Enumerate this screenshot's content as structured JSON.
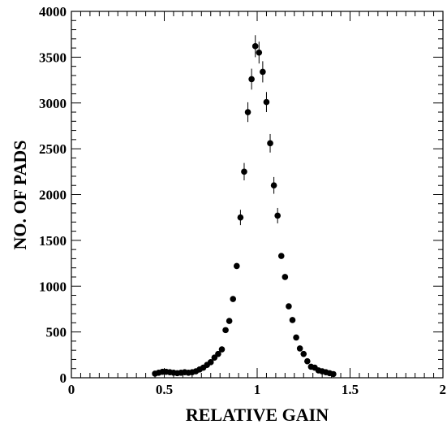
{
  "chart_data": {
    "type": "scatter",
    "title": "",
    "xlabel": "RELATIVE GAIN",
    "ylabel": "NO. OF PADS",
    "xlim": [
      0,
      2
    ],
    "ylim": [
      0,
      4000
    ],
    "x_ticks": [
      "0",
      "0.5",
      "1",
      "1.5",
      "2"
    ],
    "y_ticks": [
      "0",
      "500",
      "1000",
      "1500",
      "2000",
      "2500",
      "3000",
      "3500",
      "4000"
    ],
    "grid": false,
    "marker": "filled-circle",
    "marker_color": "#000000",
    "series": [
      {
        "points": [
          [
            0.45,
            45
          ],
          [
            0.47,
            55
          ],
          [
            0.49,
            65
          ],
          [
            0.51,
            65
          ],
          [
            0.53,
            60
          ],
          [
            0.55,
            55
          ],
          [
            0.57,
            50
          ],
          [
            0.59,
            55
          ],
          [
            0.61,
            60
          ],
          [
            0.63,
            55
          ],
          [
            0.65,
            60
          ],
          [
            0.67,
            70
          ],
          [
            0.69,
            90
          ],
          [
            0.71,
            110
          ],
          [
            0.73,
            140
          ],
          [
            0.75,
            170
          ],
          [
            0.77,
            220
          ],
          [
            0.79,
            260
          ],
          [
            0.81,
            310
          ],
          [
            0.83,
            520
          ],
          [
            0.85,
            620
          ],
          [
            0.87,
            860
          ],
          [
            0.89,
            1220
          ],
          [
            0.91,
            1750
          ],
          [
            0.93,
            2250
          ],
          [
            0.95,
            2900
          ],
          [
            0.97,
            3260
          ],
          [
            0.99,
            3620
          ],
          [
            1.01,
            3550
          ],
          [
            1.03,
            3340
          ],
          [
            1.05,
            3010
          ],
          [
            1.07,
            2560
          ],
          [
            1.09,
            2100
          ],
          [
            1.11,
            1770
          ],
          [
            1.13,
            1330
          ],
          [
            1.15,
            1100
          ],
          [
            1.17,
            780
          ],
          [
            1.19,
            630
          ],
          [
            1.21,
            440
          ],
          [
            1.23,
            320
          ],
          [
            1.25,
            260
          ],
          [
            1.27,
            180
          ],
          [
            1.29,
            120
          ],
          [
            1.31,
            110
          ],
          [
            1.33,
            80
          ],
          [
            1.35,
            70
          ],
          [
            1.37,
            60
          ],
          [
            1.39,
            50
          ],
          [
            1.41,
            40
          ]
        ]
      }
    ]
  }
}
